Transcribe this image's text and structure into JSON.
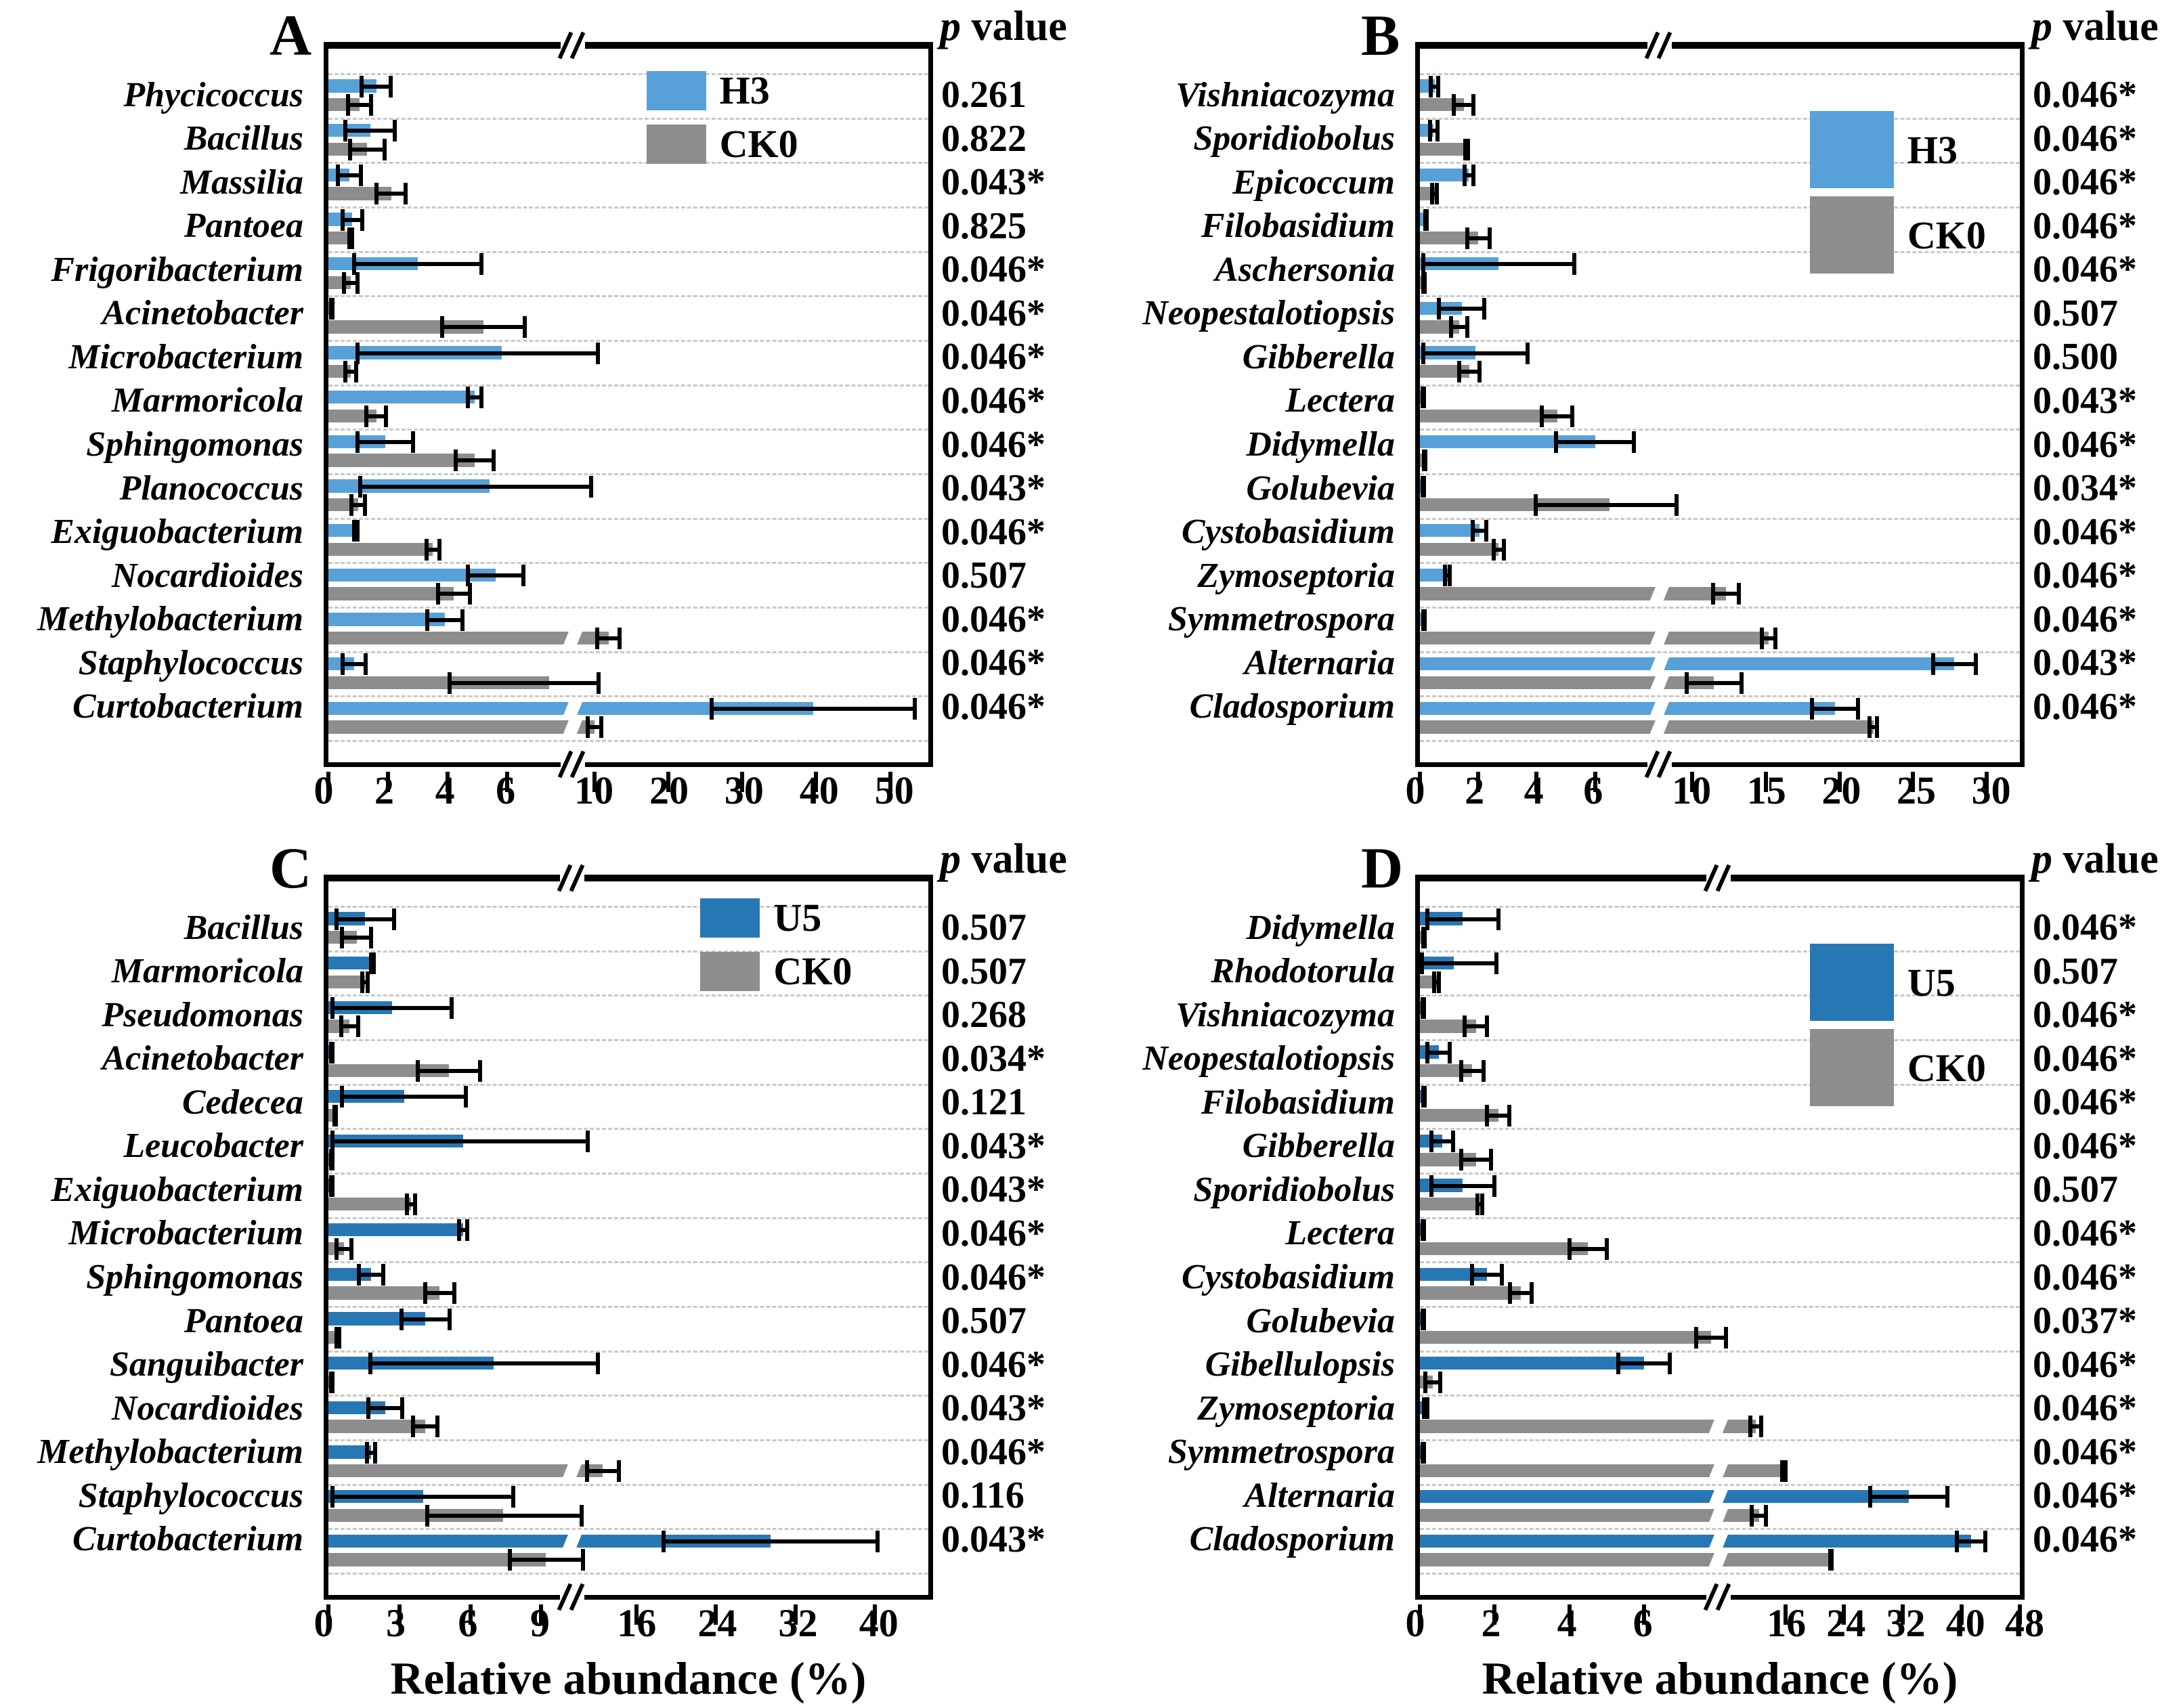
{
  "figure": {
    "p_header_p": "p",
    "p_header_rest": " value",
    "x_axis_label": "Relative abundance (%)"
  },
  "chart_data": [
    {
      "id": "A",
      "type": "bar",
      "orientation": "horizontal",
      "panel_label": "A",
      "treatment": "H3",
      "control": "CK0",
      "treatment_color": "#58A1D8",
      "control_color": "#8D8D8D",
      "legend_position": "inside-top-right",
      "grid": "dashed-row-separators",
      "axis": {
        "left_ticks": [
          0,
          2,
          4,
          6
        ],
        "right_ticks": [
          10,
          20,
          30,
          40,
          50
        ],
        "left_max": 8.2,
        "break_frac": 0.408,
        "anchor_val": 10,
        "anchor_frac": 0.4435,
        "unit_frac": 0.01232,
        "broken": true
      },
      "rows": [
        {
          "genus": "Phycicoccus",
          "treat": 1.6,
          "treat_err": 0.55,
          "ctrl": 1.05,
          "ctrl_err": 0.45,
          "p": "0.261"
        },
        {
          "genus": "Bacillus",
          "treat": 1.4,
          "treat_err": 0.9,
          "ctrl": 1.3,
          "ctrl_err": 0.65,
          "p": "0.822"
        },
        {
          "genus": "Massilia",
          "treat": 0.7,
          "treat_err": 0.45,
          "ctrl": 2.1,
          "ctrl_err": 0.55,
          "p": "0.043*"
        },
        {
          "genus": "Pantoea",
          "treat": 0.8,
          "treat_err": 0.4,
          "ctrl": 0.75,
          "ctrl_err": 0.12,
          "p": "0.825"
        },
        {
          "genus": "Frigoribacterium",
          "treat": 3.0,
          "treat_err": 2.2,
          "ctrl": 0.75,
          "ctrl_err": 0.3,
          "p": "0.046*"
        },
        {
          "genus": "Acinetobacter",
          "treat": 0.08,
          "treat_err": 0.05,
          "ctrl": 5.2,
          "ctrl_err": 1.45,
          "p": "0.046*"
        },
        {
          "genus": "Microbacterium",
          "treat": 5.8,
          "treat_err": 4.9,
          "ctrl": 0.75,
          "ctrl_err": 0.25,
          "p": "0.046*"
        },
        {
          "genus": "Marmoricola",
          "treat": 4.9,
          "treat_err": 0.3,
          "ctrl": 1.6,
          "ctrl_err": 0.4,
          "p": "0.046*"
        },
        {
          "genus": "Sphingomonas",
          "treat": 1.9,
          "treat_err": 1.0,
          "ctrl": 4.9,
          "ctrl_err": 0.7,
          "p": "0.046*"
        },
        {
          "genus": "Planococcus",
          "treat": 5.4,
          "treat_err": 4.4,
          "ctrl": 1.0,
          "ctrl_err": 0.3,
          "p": "0.043*"
        },
        {
          "genus": "Exiguobacterium",
          "treat": 0.92,
          "treat_err": 0.12,
          "ctrl": 3.5,
          "ctrl_err": 0.28,
          "p": "0.046*"
        },
        {
          "genus": "Nocardioides",
          "treat": 5.6,
          "treat_err": 1.0,
          "ctrl": 4.2,
          "ctrl_err": 0.6,
          "p": "0.507"
        },
        {
          "genus": "Methylobacterium",
          "treat": 3.9,
          "treat_err": 0.65,
          "ctrl": 11.9,
          "ctrl_err": 1.8,
          "p": "0.046*"
        },
        {
          "genus": "Staphylococcus",
          "treat": 0.86,
          "treat_err": 0.45,
          "ctrl": 7.4,
          "ctrl_err": 3.4,
          "p": "0.046*"
        },
        {
          "genus": "Curtobacterium",
          "treat": 39.6,
          "treat_err": 14.0,
          "ctrl": 10.0,
          "ctrl_err": 1.2,
          "p": "0.046*"
        }
      ]
    },
    {
      "id": "B",
      "type": "bar",
      "orientation": "horizontal",
      "panel_label": "B",
      "treatment": "H3",
      "control": "CK0",
      "treatment_color": "#58A1D8",
      "control_color": "#8D8D8D",
      "legend_position": "inside-top-right",
      "grid": "dashed-row-separators",
      "axis": {
        "left_ticks": [
          0,
          2,
          4,
          6
        ],
        "right_ticks": [
          10,
          15,
          20,
          25,
          30
        ],
        "left_max": 8.2,
        "break_frac": 0.399,
        "anchor_val": 10,
        "anchor_frac": 0.4535,
        "unit_frac": 0.02458,
        "broken": true
      },
      "rows": [
        {
          "genus": "Vishniacozyma",
          "treat": 0.5,
          "treat_err": 0.2,
          "ctrl": 1.5,
          "ctrl_err": 0.4,
          "p": "0.046*"
        },
        {
          "genus": "Sporidiobolus",
          "treat": 0.47,
          "treat_err": 0.2,
          "ctrl": 1.6,
          "ctrl_err": 0.12,
          "p": "0.046*"
        },
        {
          "genus": "Epicoccum",
          "treat": 1.67,
          "treat_err": 0.22,
          "ctrl": 0.5,
          "ctrl_err": 0.15,
          "p": "0.046*"
        },
        {
          "genus": "Filobasidium",
          "treat": 0.2,
          "treat_err": 0.08,
          "ctrl": 2.0,
          "ctrl_err": 0.45,
          "p": "0.046*"
        },
        {
          "genus": "Aschersonia",
          "treat": 2.7,
          "treat_err": 2.65,
          "ctrl": 0.1,
          "ctrl_err": 0.05,
          "p": "0.046*"
        },
        {
          "genus": "Neopestalotiopsis",
          "treat": 1.43,
          "treat_err": 0.85,
          "ctrl": 1.35,
          "ctrl_err": 0.35,
          "p": "0.507"
        },
        {
          "genus": "Gibberella",
          "treat": 1.9,
          "treat_err": 1.85,
          "ctrl": 1.7,
          "ctrl_err": 0.42,
          "p": "0.500"
        },
        {
          "genus": "Lectera",
          "treat": 0.06,
          "treat_err": 0.04,
          "ctrl": 4.7,
          "ctrl_err": 0.6,
          "p": "0.043*"
        },
        {
          "genus": "Didymella",
          "treat": 6.0,
          "treat_err": 1.4,
          "ctrl": 0.15,
          "ctrl_err": 0.08,
          "p": "0.046*"
        },
        {
          "genus": "Golubevia",
          "treat": 0.04,
          "treat_err": 0.02,
          "ctrl": 6.5,
          "ctrl_err": 2.6,
          "p": "0.034*"
        },
        {
          "genus": "Cystobasidium",
          "treat": 2.05,
          "treat_err": 0.3,
          "ctrl": 2.7,
          "ctrl_err": 0.25,
          "p": "0.046*"
        },
        {
          "genus": "Zymoseptoria",
          "treat": 0.95,
          "treat_err": 0.15,
          "ctrl": 12.3,
          "ctrl_err": 1.0,
          "p": "0.046*"
        },
        {
          "genus": "Symmetrospora",
          "treat": 0.1,
          "treat_err": 0.05,
          "ctrl": 15.2,
          "ctrl_err": 0.6,
          "p": "0.046*"
        },
        {
          "genus": "Alternaria",
          "treat": 27.8,
          "treat_err": 1.6,
          "ctrl": 11.5,
          "ctrl_err": 2.0,
          "p": "0.043*"
        },
        {
          "genus": "Cladosporium",
          "treat": 19.7,
          "treat_err": 1.7,
          "ctrl": 22.3,
          "ctrl_err": 0.4,
          "p": "0.046*"
        }
      ]
    },
    {
      "id": "C",
      "type": "bar",
      "orientation": "horizontal",
      "panel_label": "C",
      "treatment": "U5",
      "control": "CK0",
      "treatment_color": "#2877B5",
      "control_color": "#8D8D8D",
      "legend_position": "inside-top-right",
      "grid": "dashed-row-separators",
      "axis": {
        "left_ticks": [
          0,
          3,
          6,
          9
        ],
        "right_ticks": [
          16,
          24,
          32,
          40
        ],
        "left_max": 10.3,
        "break_frac": 0.406,
        "anchor_val": 16,
        "anchor_frac": 0.5136,
        "unit_frac": 0.01655,
        "broken": true
      },
      "rows": [
        {
          "genus": "Bacillus",
          "treat": 1.55,
          "treat_err": 1.3,
          "ctrl": 1.2,
          "ctrl_err": 0.7,
          "p": "0.507"
        },
        {
          "genus": "Marmoricola",
          "treat": 1.86,
          "treat_err": 0.15,
          "ctrl": 1.55,
          "ctrl_err": 0.2,
          "p": "0.507"
        },
        {
          "genus": "Pseudomonas",
          "treat": 2.7,
          "treat_err": 2.6,
          "ctrl": 0.9,
          "ctrl_err": 0.45,
          "p": "0.268"
        },
        {
          "genus": "Acinetobacter",
          "treat": 0.05,
          "treat_err": 0.03,
          "ctrl": 5.1,
          "ctrl_err": 1.4,
          "p": "0.034*"
        },
        {
          "genus": "Cedecea",
          "treat": 3.2,
          "treat_err": 2.7,
          "ctrl": 0.28,
          "ctrl_err": 0.12,
          "p": "0.121"
        },
        {
          "genus": "Leucobacter",
          "treat": 5.7,
          "treat_err": 5.6,
          "ctrl": 0.06,
          "ctrl_err": 0.04,
          "p": "0.043*"
        },
        {
          "genus": "Exiguobacterium",
          "treat": 0.08,
          "treat_err": 0.05,
          "ctrl": 3.5,
          "ctrl_err": 0.25,
          "p": "0.043*"
        },
        {
          "genus": "Microbacterium",
          "treat": 5.7,
          "treat_err": 0.25,
          "ctrl": 0.66,
          "ctrl_err": 0.4,
          "p": "0.046*"
        },
        {
          "genus": "Sphingomonas",
          "treat": 1.8,
          "treat_err": 0.6,
          "ctrl": 4.7,
          "ctrl_err": 0.7,
          "p": "0.046*"
        },
        {
          "genus": "Pantoea",
          "treat": 4.1,
          "treat_err": 1.1,
          "ctrl": 0.4,
          "ctrl_err": 0.15,
          "p": "0.507"
        },
        {
          "genus": "Sanguibacter",
          "treat": 7.0,
          "treat_err": 5.3,
          "ctrl": 0.1,
          "ctrl_err": 0.06,
          "p": "0.046*"
        },
        {
          "genus": "Nocardioides",
          "treat": 2.4,
          "treat_err": 0.8,
          "ctrl": 4.1,
          "ctrl_err": 0.6,
          "p": "0.043*"
        },
        {
          "genus": "Methylobacterium",
          "treat": 1.8,
          "treat_err": 0.25,
          "ctrl": 12.6,
          "ctrl_err": 1.8,
          "p": "0.046*"
        },
        {
          "genus": "Staphylococcus",
          "treat": 4.0,
          "treat_err": 3.9,
          "ctrl": 7.4,
          "ctrl_err": 3.3,
          "p": "0.116"
        },
        {
          "genus": "Curtobacterium",
          "treat": 29.5,
          "treat_err": 11.0,
          "ctrl": 9.2,
          "ctrl_err": 1.6,
          "p": "0.043*"
        }
      ]
    },
    {
      "id": "D",
      "type": "bar",
      "orientation": "horizontal",
      "panel_label": "D",
      "treatment": "U5",
      "control": "CK0",
      "treatment_color": "#2877B5",
      "control_color": "#8D8D8D",
      "legend_position": "inside-top-right",
      "grid": "dashed-row-separators",
      "axis": {
        "left_ticks": [
          0,
          2,
          4,
          6
        ],
        "right_ticks": [
          16,
          24,
          32,
          40,
          48
        ],
        "left_max": 8.0,
        "break_frac": 0.498,
        "anchor_val": 16,
        "anchor_frac": 0.609,
        "unit_frac": 0.01225,
        "broken": true
      },
      "rows": [
        {
          "genus": "Didymella",
          "treat": 1.15,
          "treat_err": 1.0,
          "ctrl": 0.1,
          "ctrl_err": 0.06,
          "p": "0.046*"
        },
        {
          "genus": "Rhodotorula",
          "treat": 0.9,
          "treat_err": 1.2,
          "ctrl": 0.45,
          "ctrl_err": 0.12,
          "p": "0.507"
        },
        {
          "genus": "Vishniacozyma",
          "treat": 0.04,
          "treat_err": 0.02,
          "ctrl": 1.5,
          "ctrl_err": 0.35,
          "p": "0.046*"
        },
        {
          "genus": "Neopestalotiopsis",
          "treat": 0.5,
          "treat_err": 0.35,
          "ctrl": 1.4,
          "ctrl_err": 0.35,
          "p": "0.046*"
        },
        {
          "genus": "Filobasidium",
          "treat": 0.07,
          "treat_err": 0.04,
          "ctrl": 2.1,
          "ctrl_err": 0.35,
          "p": "0.046*"
        },
        {
          "genus": "Gibberella",
          "treat": 0.6,
          "treat_err": 0.35,
          "ctrl": 1.5,
          "ctrl_err": 0.45,
          "p": "0.046*"
        },
        {
          "genus": "Sporidiobolus",
          "treat": 1.15,
          "treat_err": 0.9,
          "ctrl": 1.6,
          "ctrl_err": 0.12,
          "p": "0.507"
        },
        {
          "genus": "Lectera",
          "treat": 0.04,
          "treat_err": 0.02,
          "ctrl": 4.5,
          "ctrl_err": 0.55,
          "p": "0.046*"
        },
        {
          "genus": "Cystobasidium",
          "treat": 1.8,
          "treat_err": 0.45,
          "ctrl": 2.7,
          "ctrl_err": 0.35,
          "p": "0.046*"
        },
        {
          "genus": "Golubevia",
          "treat": 0.03,
          "treat_err": 0.02,
          "ctrl": 7.8,
          "ctrl_err": 0.45,
          "p": "0.037*"
        },
        {
          "genus": "Gibellulopsis",
          "treat": 6.0,
          "treat_err": 0.75,
          "ctrl": 0.35,
          "ctrl_err": 0.25,
          "p": "0.046*"
        },
        {
          "genus": "Zymoseptoria",
          "treat": 0.15,
          "treat_err": 0.1,
          "ctrl": 12.0,
          "ctrl_err": 1.0,
          "p": "0.046*"
        },
        {
          "genus": "Symmetrospora",
          "treat": 0.05,
          "treat_err": 0.03,
          "ctrl": 15.8,
          "ctrl_err": 0.5,
          "p": "0.046*"
        },
        {
          "genus": "Alternaria",
          "treat": 32.8,
          "treat_err": 5.5,
          "ctrl": 12.4,
          "ctrl_err": 1.2,
          "p": "0.046*"
        },
        {
          "genus": "Cladosporium",
          "treat": 41.3,
          "treat_err": 2.2,
          "ctrl": 22.2,
          "ctrl_err": 0.4,
          "p": "0.046*"
        }
      ]
    }
  ]
}
